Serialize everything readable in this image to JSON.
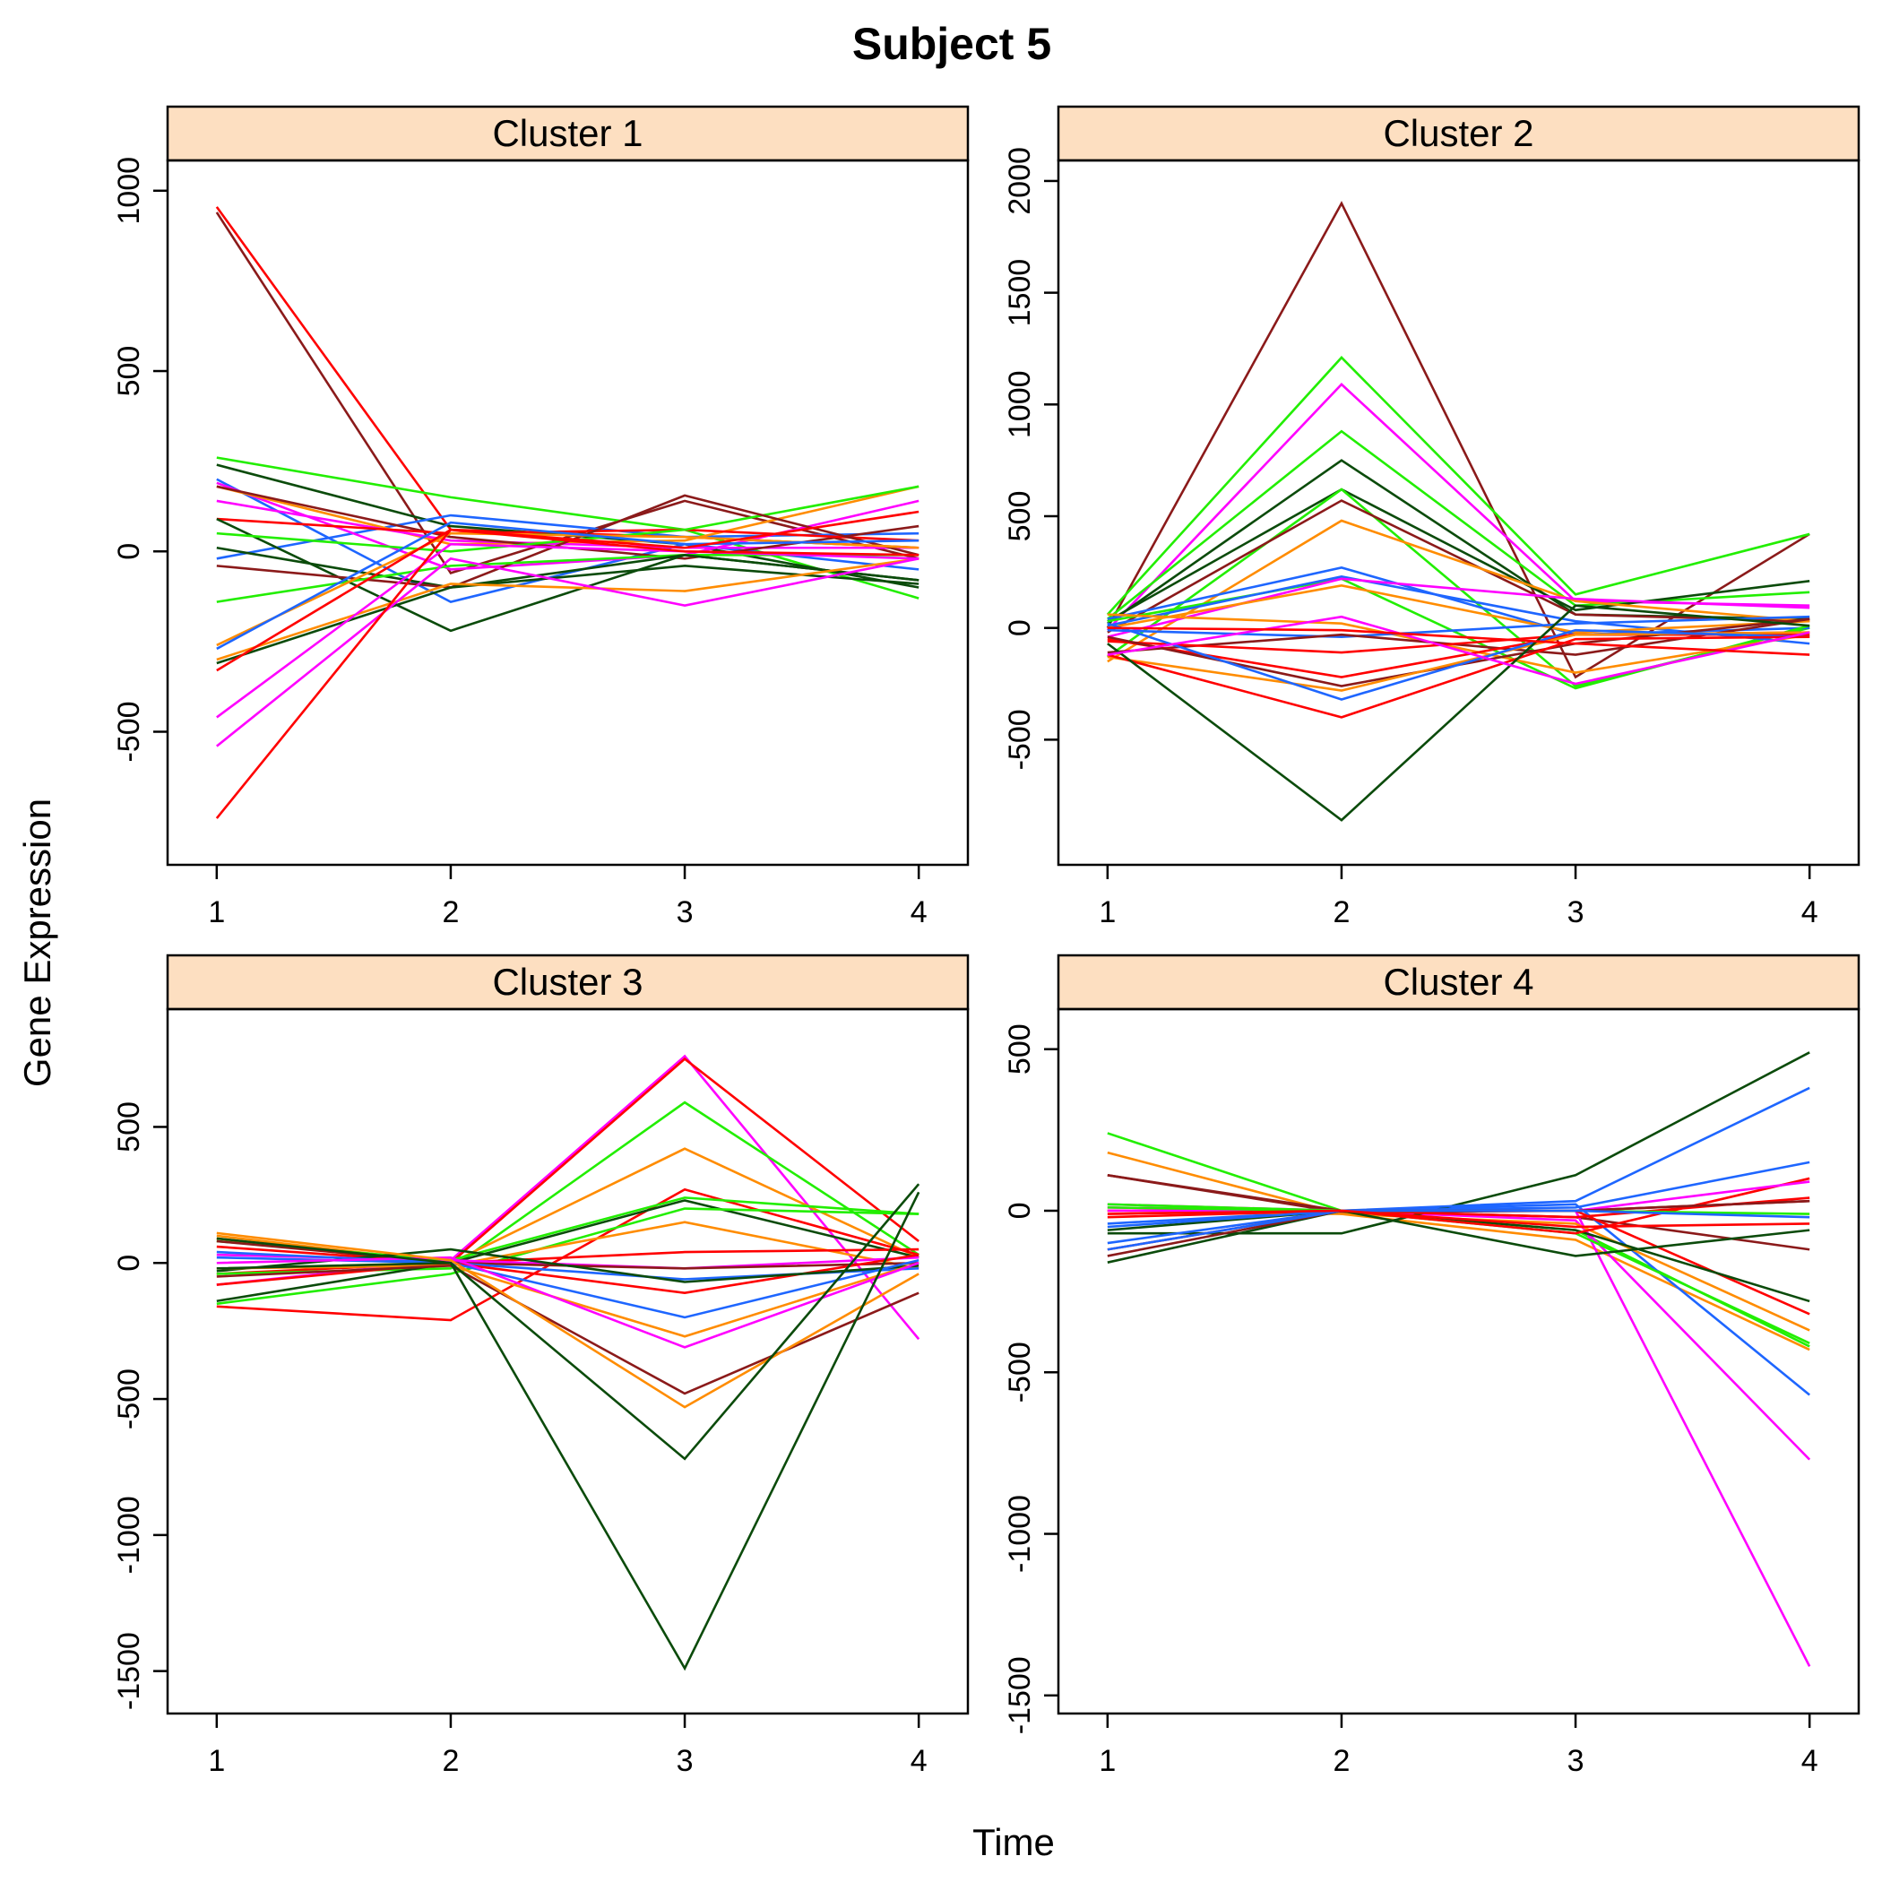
{
  "title": "Subject 5",
  "xlabel": "Time",
  "ylabel": "Gene Expression",
  "strip_color": "#FDDFC1",
  "colors": {
    "red": "#FF0000",
    "darkred": "#8B1A1A",
    "green": "#22EE00",
    "darkgreen": "#0B4B0B",
    "blue": "#1E66FF",
    "orange": "#FF8C00",
    "magenta": "#FF00FF"
  },
  "chart_data": [
    {
      "type": "line",
      "title": "Cluster 1",
      "x": [
        1,
        2,
        3,
        4
      ],
      "xticks": [
        "1",
        "2",
        "3",
        "4"
      ],
      "ylim": [
        -869,
        1084
      ],
      "yticks": [
        -500,
        0,
        500,
        1000
      ],
      "grid": false,
      "series": [
        {
          "color": "red",
          "values": [
            955,
            60,
            40,
            10
          ]
        },
        {
          "color": "darkred",
          "values": [
            940,
            -60,
            140,
            -20
          ]
        },
        {
          "color": "green",
          "values": [
            260,
            150,
            60,
            -130
          ]
        },
        {
          "color": "darkgreen",
          "values": [
            240,
            70,
            20,
            -100
          ]
        },
        {
          "color": "blue",
          "values": [
            200,
            -140,
            20,
            -50
          ]
        },
        {
          "color": "blue",
          "values": [
            -20,
            100,
            40,
            50
          ]
        },
        {
          "color": "magenta",
          "values": [
            190,
            -50,
            -10,
            140
          ]
        },
        {
          "color": "orange",
          "values": [
            180,
            20,
            30,
            180
          ]
        },
        {
          "color": "magenta",
          "values": [
            140,
            30,
            10,
            10
          ]
        },
        {
          "color": "darkred",
          "values": [
            180,
            40,
            -20,
            70
          ]
        },
        {
          "color": "red",
          "values": [
            90,
            50,
            60,
            30
          ]
        },
        {
          "color": "darkgreen",
          "values": [
            90,
            -220,
            -10,
            -80
          ]
        },
        {
          "color": "green",
          "values": [
            50,
            0,
            60,
            180
          ]
        },
        {
          "color": "darkgreen",
          "values": [
            10,
            -100,
            -40,
            -90
          ]
        },
        {
          "color": "darkred",
          "values": [
            -40,
            -100,
            155,
            -10
          ]
        },
        {
          "color": "green",
          "values": [
            -140,
            -40,
            -10,
            -10
          ]
        },
        {
          "color": "orange",
          "values": [
            -260,
            50,
            40,
            10
          ]
        },
        {
          "color": "blue",
          "values": [
            -270,
            80,
            20,
            30
          ]
        },
        {
          "color": "darkgreen",
          "values": [
            -310,
            -100,
            -10,
            -80
          ]
        },
        {
          "color": "orange",
          "values": [
            -300,
            -90,
            -110,
            -20
          ]
        },
        {
          "color": "red",
          "values": [
            -330,
            60,
            10,
            110
          ]
        },
        {
          "color": "magenta",
          "values": [
            -460,
            20,
            0,
            -20
          ]
        },
        {
          "color": "magenta",
          "values": [
            -540,
            -20,
            -150,
            -20
          ]
        },
        {
          "color": "red",
          "values": [
            -740,
            60,
            0,
            -10
          ]
        }
      ]
    },
    {
      "type": "line",
      "title": "Cluster 2",
      "x": [
        1,
        2,
        3,
        4
      ],
      "xticks": [
        "1",
        "2",
        "3",
        "4"
      ],
      "ylim": [
        -1060,
        2092
      ],
      "yticks": [
        -500,
        0,
        500,
        1000,
        1500,
        2000
      ],
      "grid": false,
      "series": [
        {
          "color": "darkred",
          "values": [
            0,
            1900,
            -220,
            420
          ]
        },
        {
          "color": "green",
          "values": [
            60,
            1210,
            150,
            420
          ]
        },
        {
          "color": "magenta",
          "values": [
            -10,
            1090,
            120,
            100
          ]
        },
        {
          "color": "green",
          "values": [
            40,
            880,
            100,
            160
          ]
        },
        {
          "color": "darkgreen",
          "values": [
            20,
            750,
            60,
            40
          ]
        },
        {
          "color": "darkgreen",
          "values": [
            30,
            620,
            80,
            210
          ]
        },
        {
          "color": "green",
          "values": [
            -130,
            620,
            -260,
            0
          ]
        },
        {
          "color": "darkred",
          "values": [
            -20,
            570,
            60,
            30
          ]
        },
        {
          "color": "orange",
          "values": [
            -150,
            480,
            120,
            30
          ]
        },
        {
          "color": "blue",
          "values": [
            40,
            270,
            -30,
            0
          ]
        },
        {
          "color": "green",
          "values": [
            30,
            220,
            -270,
            10
          ]
        },
        {
          "color": "blue",
          "values": [
            10,
            230,
            30,
            -70
          ]
        },
        {
          "color": "magenta",
          "values": [
            -40,
            220,
            130,
            90
          ]
        },
        {
          "color": "orange",
          "values": [
            0,
            190,
            -20,
            30
          ]
        },
        {
          "color": "orange",
          "values": [
            60,
            20,
            -200,
            -30
          ]
        },
        {
          "color": "blue",
          "values": [
            -10,
            -40,
            20,
            50
          ]
        },
        {
          "color": "darkred",
          "values": [
            -110,
            -30,
            -120,
            40
          ]
        },
        {
          "color": "red",
          "values": [
            -60,
            -110,
            -30,
            -20
          ]
        },
        {
          "color": "red",
          "values": [
            -50,
            -220,
            -30,
            -30
          ]
        },
        {
          "color": "darkred",
          "values": [
            -40,
            -260,
            -70,
            40
          ]
        },
        {
          "color": "orange",
          "values": [
            -130,
            -280,
            -30,
            -20
          ]
        },
        {
          "color": "blue",
          "values": [
            20,
            -320,
            -10,
            -40
          ]
        },
        {
          "color": "red",
          "values": [
            -120,
            -400,
            -50,
            -40
          ]
        },
        {
          "color": "darkgreen",
          "values": [
            -70,
            -860,
            100,
            10
          ]
        },
        {
          "color": "magenta",
          "values": [
            -120,
            50,
            -250,
            -20
          ]
        },
        {
          "color": "red",
          "values": [
            0,
            -10,
            -70,
            -120
          ]
        }
      ]
    },
    {
      "type": "line",
      "title": "Cluster 3",
      "x": [
        1,
        2,
        3,
        4
      ],
      "xticks": [
        "1",
        "2",
        "3",
        "4"
      ],
      "ylim": [
        -1656,
        933
      ],
      "yticks": [
        -1500,
        -1000,
        -500,
        0,
        500
      ],
      "grid": false,
      "series": [
        {
          "color": "magenta",
          "values": [
            30,
            10,
            760,
            -280
          ]
        },
        {
          "color": "red",
          "values": [
            -40,
            0,
            750,
            80
          ]
        },
        {
          "color": "green",
          "values": [
            -40,
            -20,
            590,
            30
          ]
        },
        {
          "color": "orange",
          "values": [
            100,
            0,
            420,
            20
          ]
        },
        {
          "color": "red",
          "values": [
            -160,
            -210,
            270,
            30
          ]
        },
        {
          "color": "darkgreen",
          "values": [
            -140,
            0,
            230,
            20
          ]
        },
        {
          "color": "green",
          "values": [
            -150,
            -40,
            200,
            180
          ]
        },
        {
          "color": "green",
          "values": [
            80,
            10,
            240,
            180
          ]
        },
        {
          "color": "orange",
          "values": [
            90,
            -10,
            150,
            -20
          ]
        },
        {
          "color": "red",
          "values": [
            60,
            0,
            40,
            50
          ]
        },
        {
          "color": "magenta",
          "values": [
            -80,
            10,
            -20,
            20
          ]
        },
        {
          "color": "darkred",
          "values": [
            80,
            0,
            -20,
            0
          ]
        },
        {
          "color": "blue",
          "values": [
            20,
            0,
            -60,
            -20
          ]
        },
        {
          "color": "red",
          "values": [
            -80,
            0,
            -110,
            30
          ]
        },
        {
          "color": "darkgreen",
          "values": [
            -30,
            50,
            -70,
            -10
          ]
        },
        {
          "color": "blue",
          "values": [
            40,
            0,
            -200,
            10
          ]
        },
        {
          "color": "orange",
          "values": [
            -20,
            -10,
            -270,
            0
          ]
        },
        {
          "color": "magenta",
          "values": [
            0,
            20,
            -310,
            0
          ]
        },
        {
          "color": "darkred",
          "values": [
            -50,
            -10,
            -480,
            -110
          ]
        },
        {
          "color": "orange",
          "values": [
            110,
            10,
            -530,
            -40
          ]
        },
        {
          "color": "darkgreen",
          "values": [
            -20,
            0,
            -720,
            290
          ]
        },
        {
          "color": "darkgreen",
          "values": [
            90,
            0,
            -1490,
            260
          ]
        }
      ]
    },
    {
      "type": "line",
      "title": "Cluster 4",
      "x": [
        1,
        2,
        3,
        4
      ],
      "xticks": [
        "1",
        "2",
        "3",
        "4"
      ],
      "ylim": [
        -1556,
        624
      ],
      "yticks": [
        -1500,
        -1000,
        -500,
        0,
        500
      ],
      "grid": false,
      "series": [
        {
          "color": "green",
          "values": [
            240,
            0,
            -60,
            -420
          ]
        },
        {
          "color": "orange",
          "values": [
            180,
            -10,
            -90,
            -430
          ]
        },
        {
          "color": "darkred",
          "values": [
            110,
            0,
            -20,
            -120
          ]
        },
        {
          "color": "darkred",
          "values": [
            110,
            -5,
            0,
            30
          ]
        },
        {
          "color": "magenta",
          "values": [
            20,
            0,
            0,
            -1410
          ]
        },
        {
          "color": "magenta",
          "values": [
            10,
            0,
            -30,
            -770
          ]
        },
        {
          "color": "blue",
          "values": [
            -40,
            0,
            20,
            -570
          ]
        },
        {
          "color": "orange",
          "values": [
            0,
            -10,
            -40,
            -370
          ]
        },
        {
          "color": "red",
          "values": [
            -20,
            0,
            0,
            -320
          ]
        },
        {
          "color": "darkgreen",
          "values": [
            -60,
            0,
            -60,
            -280
          ]
        },
        {
          "color": "green",
          "values": [
            20,
            0,
            -70,
            -410
          ]
        },
        {
          "color": "darkgreen",
          "values": [
            -70,
            -70,
            110,
            490
          ]
        },
        {
          "color": "blue",
          "values": [
            -100,
            0,
            30,
            380
          ]
        },
        {
          "color": "blue",
          "values": [
            -50,
            0,
            10,
            150
          ]
        },
        {
          "color": "red",
          "values": [
            0,
            0,
            -70,
            100
          ]
        },
        {
          "color": "magenta",
          "values": [
            0,
            0,
            0,
            90
          ]
        },
        {
          "color": "darkgreen",
          "values": [
            -160,
            0,
            -140,
            -60
          ]
        },
        {
          "color": "red",
          "values": [
            -120,
            0,
            -20,
            40
          ]
        },
        {
          "color": "green",
          "values": [
            10,
            0,
            0,
            -10
          ]
        },
        {
          "color": "darkred",
          "values": [
            -140,
            0,
            0,
            30
          ]
        },
        {
          "color": "blue",
          "values": [
            -120,
            0,
            0,
            -20
          ]
        },
        {
          "color": "red",
          "values": [
            -10,
            0,
            -50,
            -40
          ]
        }
      ]
    }
  ]
}
